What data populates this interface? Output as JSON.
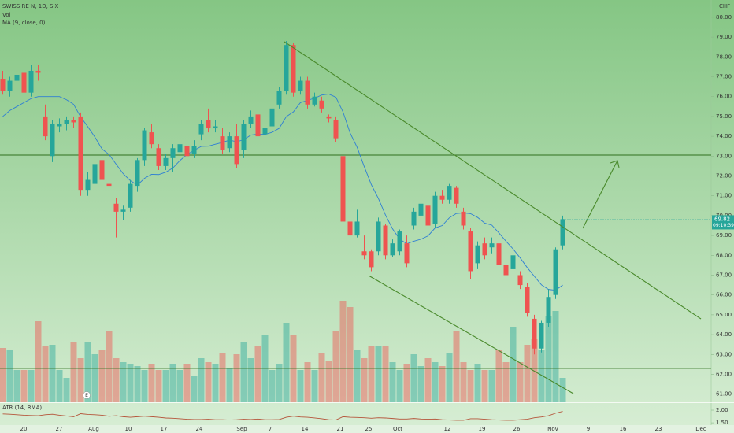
{
  "chart_data": {
    "type": "candlestick",
    "title": "SWISS RE N, 1D, SIX",
    "currency": "CHF",
    "up_color": "#26a69a",
    "down_color": "#ef5350",
    "ylim": [
      60.63,
      80.87
    ],
    "yticks": [
      {
        "value": 61,
        "label": "61.00"
      },
      {
        "value": 62,
        "label": "62.00"
      },
      {
        "value": 63,
        "label": "63.00"
      },
      {
        "value": 64,
        "label": "64.00"
      },
      {
        "value": 65,
        "label": "65.00"
      },
      {
        "value": 66,
        "label": "66.00"
      },
      {
        "value": 67,
        "label": "67.00"
      },
      {
        "value": 68,
        "label": "68.00"
      },
      {
        "value": 69,
        "label": "69.00"
      },
      {
        "value": 70,
        "label": "70.00"
      },
      {
        "value": 71,
        "label": "71.00"
      },
      {
        "value": 72,
        "label": "72.00"
      },
      {
        "value": 73,
        "label": "73.00"
      },
      {
        "value": 74,
        "label": "74.00"
      },
      {
        "value": 75,
        "label": "75.00"
      },
      {
        "value": 76,
        "label": "76.00"
      },
      {
        "value": 77,
        "label": "77.00"
      },
      {
        "value": 78,
        "label": "78.00"
      },
      {
        "value": 79,
        "label": "79.00"
      },
      {
        "value": 80,
        "label": "80.00"
      }
    ],
    "x_labels": [
      "20",
      "27",
      "Aug",
      "10",
      "17",
      "24",
      "Sep",
      "7",
      "14",
      "21",
      "25",
      "Oct",
      "12",
      "19",
      "26",
      "Nov",
      "9",
      "16",
      "23",
      "Dec"
    ],
    "candles": {
      "open": [
        76.9,
        76.3,
        76.8,
        77.2,
        76.2,
        77.3,
        75.0,
        73.0,
        74.5,
        74.6,
        74.8,
        75.0,
        71.3,
        71.6,
        72.8,
        71.6,
        70.6,
        70.2,
        70.4,
        71.5,
        72.8,
        74.2,
        73.4,
        72.5,
        72.9,
        73.2,
        73.5,
        73.1,
        74.1,
        74.8,
        74.4,
        74.0,
        73.4,
        74.0,
        73.3,
        74.6,
        75.1,
        74.1,
        74.5,
        75.6,
        76.3,
        78.6,
        76.3,
        76.8,
        75.6,
        75.8,
        75.0,
        74.8,
        73.0,
        69.7,
        69.0,
        68.2,
        68.2,
        68.2,
        69.5,
        68.0,
        68.2,
        68.6,
        69.5,
        70.0,
        70.5,
        69.6,
        71.0,
        70.8,
        71.4,
        70.2,
        69.2,
        67.6,
        68.6,
        68.4,
        68.6,
        67.5,
        67.3,
        67.0,
        66.4,
        64.8,
        63.3,
        64.6,
        66.0,
        68.5
      ],
      "high": [
        77.3,
        77.0,
        77.3,
        77.4,
        77.6,
        77.6,
        75.6,
        74.8,
        74.9,
        75.0,
        75.0,
        75.2,
        72.2,
        72.8,
        72.9,
        72.0,
        70.9,
        70.5,
        71.8,
        72.9,
        74.4,
        74.6,
        73.6,
        73.1,
        73.6,
        73.8,
        73.7,
        73.8,
        74.8,
        75.4,
        74.8,
        74.4,
        74.2,
        74.6,
        74.8,
        75.3,
        76.3,
        74.6,
        75.6,
        76.5,
        78.8,
        78.7,
        77.0,
        77.0,
        76.2,
        76.0,
        75.1,
        75.0,
        73.2,
        70.0,
        70.3,
        69.0,
        68.3,
        69.9,
        69.6,
        68.8,
        69.3,
        69.0,
        70.4,
        70.8,
        70.8,
        71.2,
        71.3,
        71.6,
        71.5,
        70.4,
        69.4,
        68.7,
        68.9,
        68.9,
        68.8,
        67.8,
        68.2,
        67.2,
        66.6,
        65.0,
        64.7,
        66.3,
        68.4,
        70.0
      ],
      "low": [
        76.1,
        76.0,
        76.2,
        76.0,
        76.0,
        76.8,
        73.8,
        72.7,
        74.2,
        74.3,
        74.4,
        71.0,
        71.0,
        71.3,
        71.2,
        71.0,
        68.9,
        69.8,
        70.2,
        71.2,
        72.5,
        73.4,
        72.3,
        72.3,
        72.2,
        73.0,
        72.8,
        72.9,
        73.8,
        74.2,
        74.2,
        73.1,
        73.2,
        72.4,
        72.9,
        74.4,
        73.8,
        73.9,
        74.3,
        75.4,
        76.1,
        76.0,
        76.1,
        75.4,
        75.5,
        75.2,
        74.7,
        73.7,
        69.5,
        68.8,
        68.9,
        67.8,
        67.2,
        68.0,
        67.8,
        67.9,
        68.0,
        67.4,
        69.3,
        69.8,
        69.3,
        69.4,
        70.6,
        70.6,
        70.4,
        69.3,
        66.8,
        67.3,
        67.8,
        68.1,
        67.3,
        66.9,
        67.1,
        66.3,
        64.9,
        63.0,
        63.1,
        64.4,
        65.8,
        68.3
      ],
      "close": [
        76.3,
        76.8,
        77.1,
        76.2,
        77.3,
        77.2,
        74.0,
        74.6,
        74.6,
        74.8,
        74.7,
        71.3,
        71.8,
        72.6,
        71.8,
        71.5,
        70.2,
        70.3,
        71.6,
        72.8,
        74.3,
        73.6,
        72.5,
        72.9,
        73.4,
        73.6,
        73.0,
        73.5,
        74.6,
        74.4,
        74.5,
        73.3,
        74.0,
        72.6,
        74.6,
        75.0,
        74.0,
        74.4,
        75.4,
        76.3,
        78.6,
        76.2,
        76.8,
        75.6,
        76.0,
        75.4,
        74.9,
        73.9,
        69.7,
        69.0,
        69.7,
        68.0,
        67.4,
        69.7,
        68.0,
        68.6,
        69.2,
        67.6,
        70.2,
        70.6,
        69.5,
        71.0,
        70.8,
        71.5,
        70.6,
        69.5,
        67.2,
        68.5,
        68.0,
        68.6,
        67.5,
        67.0,
        68.0,
        66.5,
        65.1,
        63.3,
        64.6,
        65.9,
        68.3,
        69.82
      ]
    },
    "volume": {
      "name": "Vol",
      "values": [
        68,
        65,
        40,
        40,
        40,
        102,
        70,
        72,
        40,
        30,
        75,
        55,
        75,
        60,
        65,
        90,
        55,
        50,
        48,
        45,
        40,
        48,
        40,
        40,
        48,
        40,
        48,
        32,
        55,
        50,
        48,
        62,
        42,
        60,
        75,
        55,
        70,
        85,
        40,
        48,
        100,
        85,
        40,
        50,
        40,
        62,
        52,
        90,
        128,
        120,
        65,
        55,
        70,
        70,
        70,
        50,
        40,
        48,
        60,
        45,
        55,
        50,
        45,
        62,
        90,
        50,
        40,
        48,
        40,
        40,
        65,
        50,
        95,
        50,
        72,
        80,
        65,
        108,
        115,
        30
      ]
    },
    "ma": {
      "name": "MA (9, close, 0)",
      "color": "#2f7fd4",
      "values": [
        75.0,
        75.3,
        75.5,
        75.7,
        75.9,
        76.0,
        76.0,
        76.0,
        76.0,
        75.84,
        75.61,
        74.97,
        74.48,
        73.96,
        73.36,
        73.08,
        72.59,
        72.11,
        71.76,
        71.54,
        71.88,
        72.08,
        72.07,
        72.19,
        72.4,
        72.78,
        73.08,
        73.29,
        73.49,
        73.5,
        73.6,
        73.69,
        73.81,
        73.72,
        73.83,
        74.06,
        74.11,
        74.09,
        74.2,
        74.4,
        74.99,
        75.23,
        75.7,
        75.81,
        75.92,
        76.08,
        76.13,
        75.97,
        75.23,
        74.17,
        73.44,
        72.47,
        71.56,
        70.86,
        70.03,
        69.33,
        68.81,
        68.58,
        68.71,
        68.81,
        68.98,
        69.38,
        69.5,
        69.89,
        70.11,
        70.14,
        70.1,
        69.91,
        69.62,
        69.52,
        69.13,
        68.71,
        68.32,
        67.87,
        67.38,
        66.94,
        66.51,
        66.28,
        66.24,
        66.5
      ]
    },
    "hlines": [
      73.05,
      62.3
    ],
    "last_price": 69.82,
    "countdown": "09:10:39",
    "event_label": "E",
    "atr": {
      "name": "ATR (14, RMA)",
      "color": "#b5543a",
      "ylim": [
        1.41,
        2.28
      ],
      "yticks": [
        {
          "value": 1.5,
          "label": "1.50"
        },
        {
          "value": 2,
          "label": "2.00"
        }
      ],
      "values": [
        1.85,
        1.84,
        1.82,
        1.8,
        1.79,
        1.78,
        1.82,
        1.84,
        1.8,
        1.77,
        1.74,
        1.86,
        1.83,
        1.82,
        1.8,
        1.76,
        1.78,
        1.74,
        1.72,
        1.74,
        1.76,
        1.74,
        1.72,
        1.69,
        1.68,
        1.66,
        1.64,
        1.63,
        1.63,
        1.64,
        1.62,
        1.62,
        1.61,
        1.62,
        1.64,
        1.63,
        1.65,
        1.62,
        1.62,
        1.63,
        1.72,
        1.76,
        1.73,
        1.72,
        1.69,
        1.66,
        1.62,
        1.61,
        1.74,
        1.72,
        1.71,
        1.7,
        1.68,
        1.7,
        1.69,
        1.67,
        1.65,
        1.65,
        1.67,
        1.65,
        1.64,
        1.65,
        1.62,
        1.61,
        1.6,
        1.6,
        1.66,
        1.66,
        1.64,
        1.62,
        1.61,
        1.6,
        1.6,
        1.62,
        1.64,
        1.7,
        1.73,
        1.78,
        1.88,
        1.95
      ]
    }
  }
}
